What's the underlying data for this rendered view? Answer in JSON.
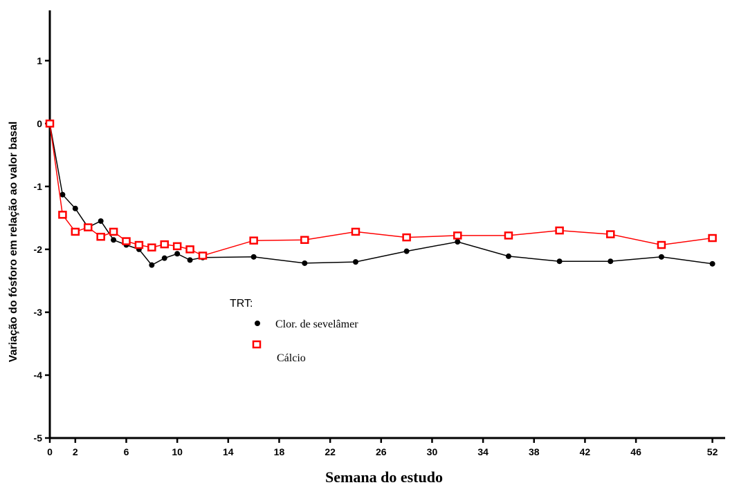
{
  "chart_data": {
    "type": "line",
    "xlabel": "Semana do estudo",
    "ylabel": "Variação do fósforo em relação ao valor basal",
    "xlim": [
      0,
      53
    ],
    "ylim": [
      -5,
      1.8
    ],
    "xticks": [
      0,
      2,
      6,
      10,
      14,
      18,
      22,
      26,
      30,
      34,
      38,
      42,
      46,
      52
    ],
    "yticks": [
      1,
      0,
      -1,
      -2,
      -3,
      -4,
      -5
    ],
    "legend": {
      "title": "TRT:",
      "placement": "center-left"
    },
    "series": [
      {
        "name": "Clor. de sevelâmer",
        "color": "#000000",
        "marker": "filled-circle",
        "x": [
          0,
          1,
          2,
          3,
          4,
          5,
          6,
          7,
          8,
          9,
          10,
          11,
          12,
          16,
          20,
          24,
          28,
          32,
          36,
          40,
          44,
          48,
          52
        ],
        "y": [
          0,
          -1.13,
          -1.35,
          -1.65,
          -1.55,
          -1.85,
          -1.93,
          -2.0,
          -2.25,
          -2.14,
          -2.07,
          -2.17,
          -2.13,
          -2.12,
          -2.22,
          -2.2,
          -2.03,
          -1.88,
          -2.11,
          -2.19,
          -2.19,
          -2.12,
          -2.23
        ]
      },
      {
        "name": "Cálcio",
        "color": "#ff0000",
        "marker": "open-square",
        "x": [
          0,
          1,
          2,
          3,
          4,
          5,
          6,
          7,
          8,
          9,
          10,
          11,
          12,
          16,
          20,
          24,
          28,
          32,
          36,
          40,
          44,
          48,
          52
        ],
        "y": [
          0,
          -1.45,
          -1.72,
          -1.65,
          -1.8,
          -1.72,
          -1.87,
          -1.93,
          -1.97,
          -1.92,
          -1.95,
          -2.0,
          -2.1,
          -1.86,
          -1.85,
          -1.72,
          -1.81,
          -1.78,
          -1.78,
          -1.7,
          -1.76,
          -1.93,
          -1.82
        ]
      }
    ]
  }
}
